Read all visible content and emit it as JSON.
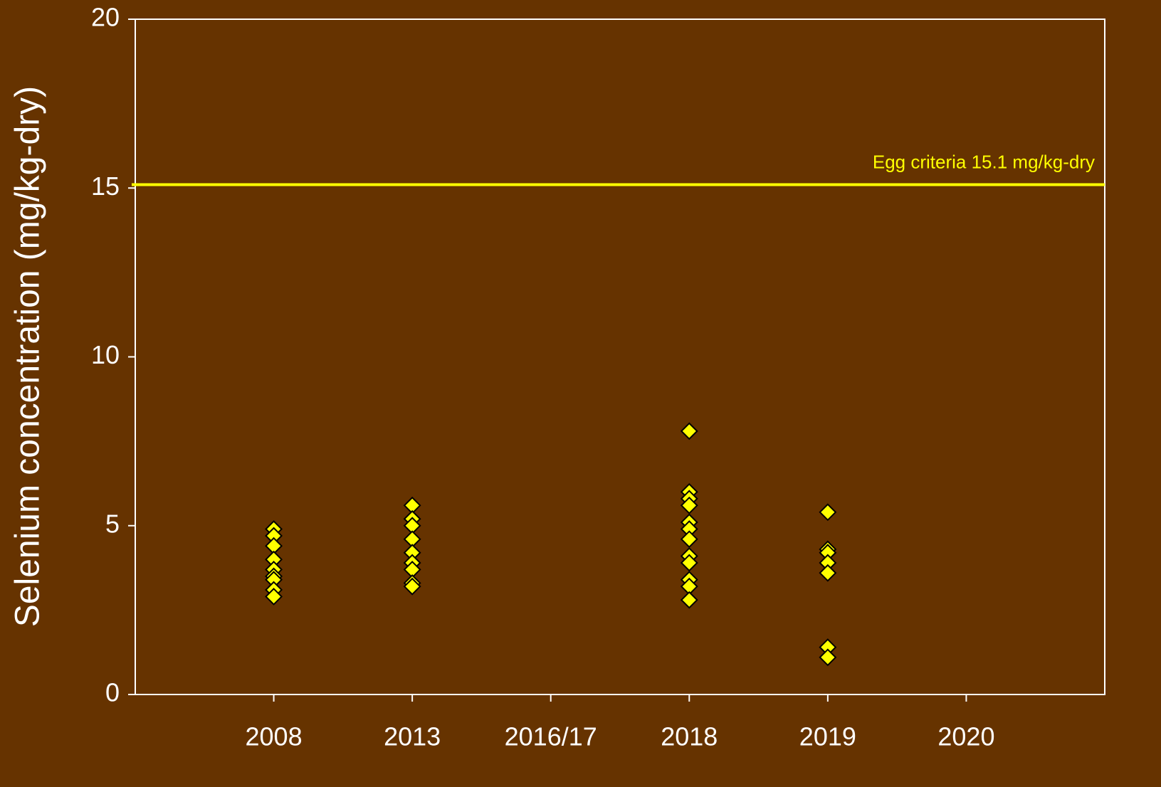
{
  "chart_data": {
    "type": "strip",
    "y_label": "Selenium concentration (mg/kg-dry)",
    "categories": [
      "2008",
      "2013",
      "2016/17",
      "2018",
      "2019",
      "2020"
    ],
    "values": [
      [
        4.9,
        4.7,
        4.4,
        4.0,
        3.7,
        3.5,
        3.4,
        3.1,
        2.9
      ],
      [
        5.6,
        5.2,
        5.0,
        4.6,
        4.2,
        3.9,
        3.7,
        3.3,
        3.2
      ],
      [],
      [
        7.8,
        6.0,
        5.8,
        5.6,
        5.1,
        4.9,
        4.6,
        4.1,
        3.9,
        3.4,
        3.2,
        2.8
      ],
      [
        5.4,
        4.3,
        4.2,
        3.9,
        3.6,
        1.4,
        1.1
      ],
      []
    ],
    "color": "#ffff00",
    "ylim": [
      0,
      20
    ],
    "yticks": [
      0,
      5,
      10,
      15,
      20
    ],
    "reference_line": {
      "value": 15.1,
      "label": "Egg criteria 15.1 mg/kg-dry",
      "color": "#ffff00"
    }
  }
}
